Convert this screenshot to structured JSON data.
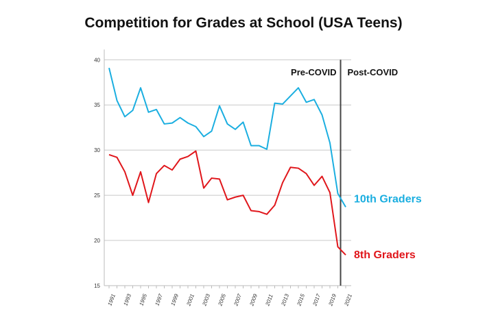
{
  "chart_data": {
    "type": "line",
    "title": "Competition for Grades at School (USA Teens)",
    "xlabel": "",
    "ylabel": "",
    "ylim": [
      15,
      40
    ],
    "yticks": [
      15,
      20,
      25,
      30,
      35,
      40
    ],
    "x": [
      1991,
      1992,
      1993,
      1994,
      1995,
      1996,
      1997,
      1998,
      1999,
      2000,
      2001,
      2002,
      2003,
      2004,
      2005,
      2006,
      2007,
      2008,
      2009,
      2010,
      2011,
      2012,
      2013,
      2014,
      2015,
      2016,
      2017,
      2018,
      2019,
      2020,
      2021
    ],
    "xticks": [
      1991,
      1993,
      1995,
      1997,
      1999,
      2001,
      2003,
      2005,
      2007,
      2009,
      2011,
      2013,
      2015,
      2017,
      2019,
      2021
    ],
    "grid": "horizontal",
    "series": [
      {
        "name": "10th Graders",
        "color": "#1AAEE0",
        "values": [
          39.1,
          35.5,
          33.7,
          34.4,
          36.9,
          34.2,
          34.5,
          32.9,
          33.0,
          33.6,
          33.0,
          32.6,
          31.5,
          32.1,
          34.9,
          32.9,
          32.3,
          33.1,
          30.5,
          30.5,
          30.1,
          35.2,
          35.1,
          36.0,
          36.9,
          35.3,
          35.6,
          33.9,
          30.8,
          25.2,
          23.7
        ]
      },
      {
        "name": "8th Graders",
        "color": "#E0161B",
        "values": [
          29.5,
          29.2,
          27.6,
          25.0,
          27.6,
          24.2,
          27.4,
          28.3,
          27.8,
          29.0,
          29.3,
          29.9,
          25.8,
          26.9,
          26.8,
          24.5,
          24.8,
          25.0,
          23.3,
          23.2,
          22.9,
          23.9,
          26.4,
          28.1,
          28.0,
          27.4,
          26.1,
          27.1,
          25.3,
          19.3,
          18.4
        ]
      }
    ],
    "annotations": {
      "divider_year": 2020.35,
      "pre": "Pre-COVID",
      "post": "Post-COVID"
    },
    "legend": "right-end-labels"
  }
}
